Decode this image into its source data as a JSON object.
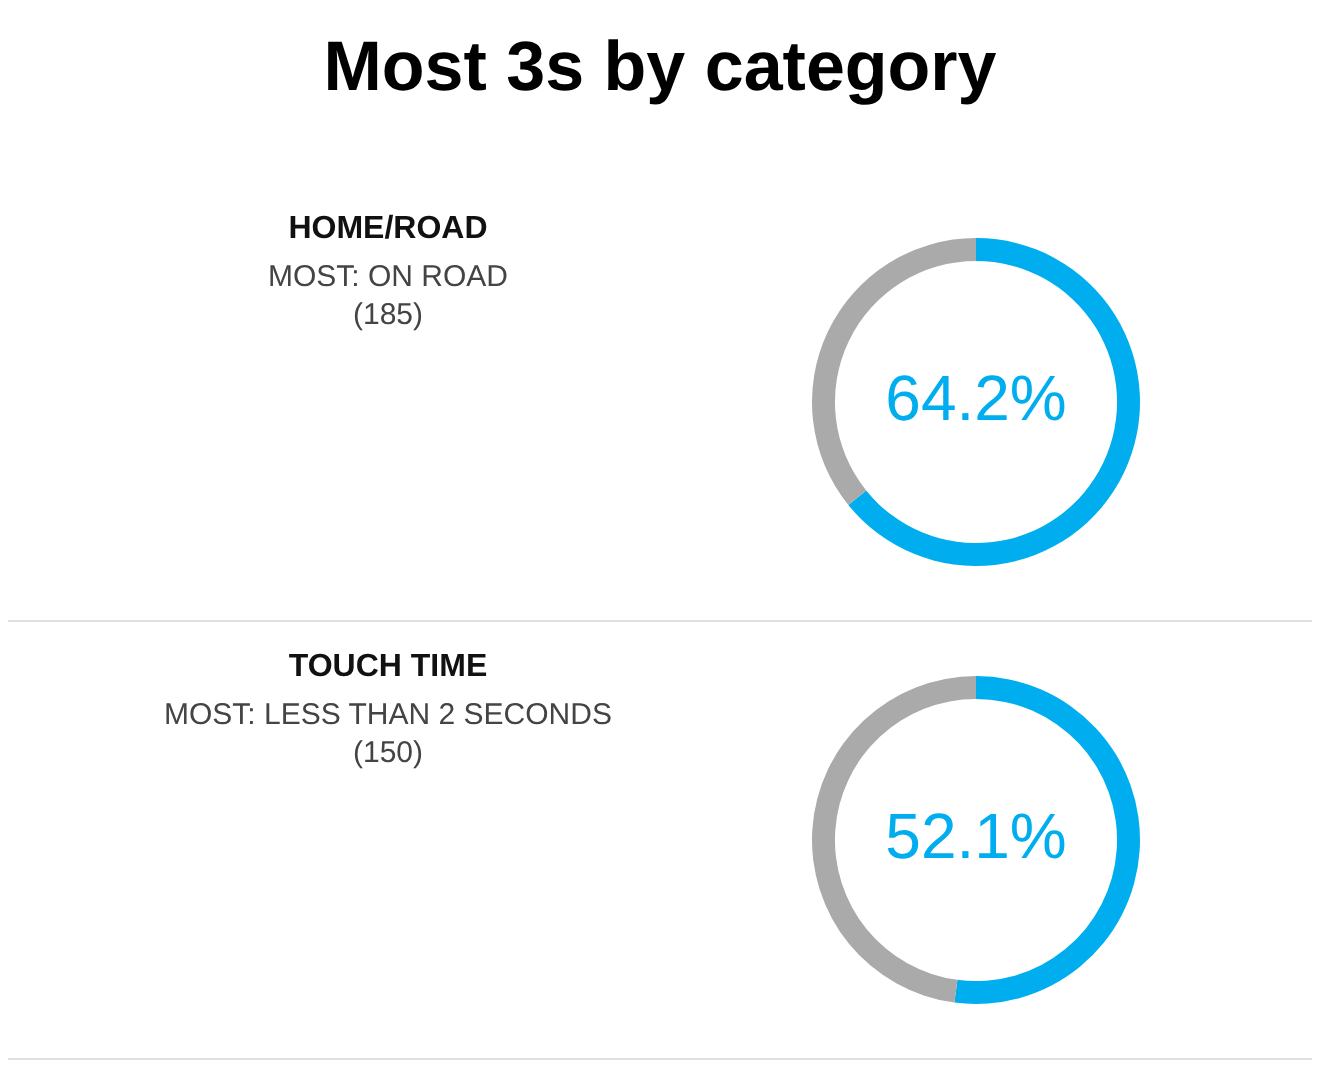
{
  "chart_data": [
    {
      "type": "other",
      "title": "Most 3s by category"
    },
    {
      "type": "donut",
      "title": "HOME/ROAD",
      "subtitle": "MOST: ON ROAD",
      "annotations": [
        "(185)"
      ],
      "categories": [
        null,
        null
      ],
      "values": [
        64.2,
        35.8
      ],
      "colors": [
        "#00aeef",
        "#aaaaaa"
      ],
      "value_labels": [
        "64.2%",
        null
      ]
    },
    {
      "type": "donut",
      "title": "TOUCH TIME",
      "subtitle": "MOST: LESS THAN 2 SECONDS",
      "annotations": [
        "(150)"
      ],
      "categories": [
        null,
        null
      ],
      "values": [
        52.1,
        47.9
      ],
      "colors": [
        "#00aeef",
        "#aaaaaa"
      ],
      "value_labels": [
        "52.1%",
        null
      ]
    }
  ]
}
